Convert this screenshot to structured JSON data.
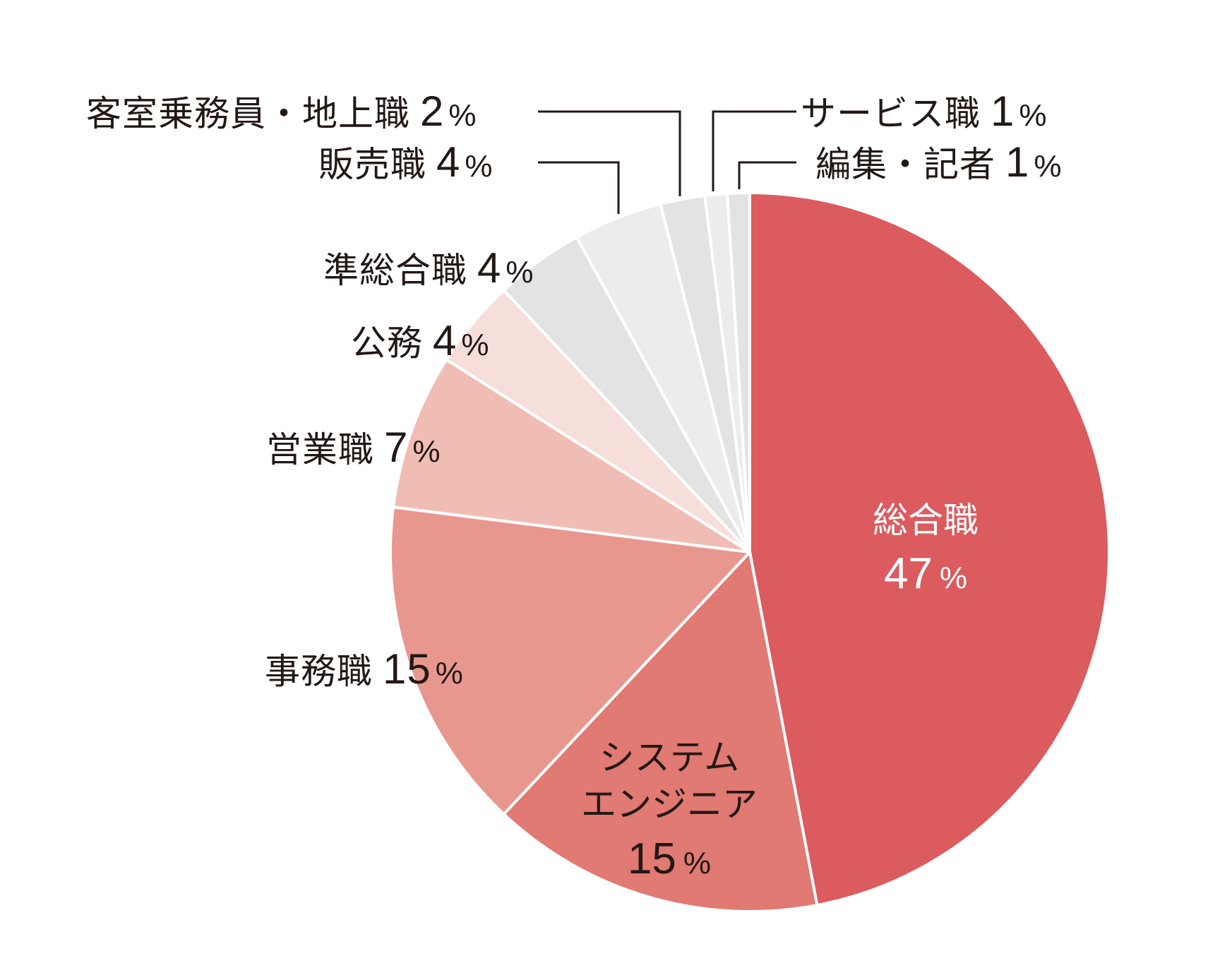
{
  "chart_data": {
    "type": "pie",
    "title": "",
    "start_angle_deg": 0,
    "direction": "clockwise",
    "unit": "%",
    "slices": [
      {
        "label": "総合職",
        "value": 47,
        "color": "#db5b5e",
        "label_color": "#ffffff",
        "label_position": "inside"
      },
      {
        "label": "システムエンジニア",
        "value": 15,
        "color": "#e07a72",
        "label_color": "#231815",
        "label_position": "inside"
      },
      {
        "label": "事務職",
        "value": 15,
        "color": "#e8978f",
        "label_color": "#231815",
        "label_position": "outside-left"
      },
      {
        "label": "営業職",
        "value": 7,
        "color": "#f0bdb5",
        "label_color": "#231815",
        "label_position": "outside-left"
      },
      {
        "label": "公務",
        "value": 4,
        "color": "#f6dfdb",
        "label_color": "#231815",
        "label_position": "outside-left"
      },
      {
        "label": "準総合職",
        "value": 4,
        "color": "#e3e3e3",
        "label_color": "#231815",
        "label_position": "outside-left"
      },
      {
        "label": "販売職",
        "value": 4,
        "color": "#ececec",
        "label_color": "#231815",
        "label_position": "leader-top-left"
      },
      {
        "label": "客室乗務員・地上職",
        "value": 2,
        "color": "#e3e3e3",
        "label_color": "#231815",
        "label_position": "leader-top-left"
      },
      {
        "label": "サービス職",
        "value": 1,
        "color": "#ececec",
        "label_color": "#231815",
        "label_position": "leader-top-right"
      },
      {
        "label": "編集・記者",
        "value": 1,
        "color": "#e3e3e3",
        "label_color": "#231815",
        "label_position": "leader-top-right"
      }
    ],
    "categories": [
      "総合職",
      "システムエンジニア",
      "事務職",
      "営業職",
      "公務",
      "準総合職",
      "販売職",
      "客室乗務員・地上職",
      "サービス職",
      "編集・記者"
    ],
    "values": [
      47,
      15,
      15,
      7,
      4,
      4,
      4,
      2,
      1,
      1
    ],
    "legend": "none (direct labels)"
  },
  "labels": {
    "sogo": {
      "name": "総合職",
      "value": "47",
      "pct": "%"
    },
    "se": {
      "name1": "システム",
      "name2": "エンジニア",
      "value": "15",
      "pct": "%"
    },
    "jimu": {
      "name": "事務職",
      "value": "15",
      "pct": "%"
    },
    "eigyo": {
      "name": "営業職",
      "value": "7",
      "pct": "%"
    },
    "komu": {
      "name": "公務",
      "value": "4",
      "pct": "%"
    },
    "junsogo": {
      "name": "準総合職",
      "value": "4",
      "pct": "%"
    },
    "hanbai": {
      "name": "販売職",
      "value": "4",
      "pct": "%"
    },
    "kyakushitsu": {
      "name": "客室乗務員・地上職",
      "value": "2",
      "pct": "%"
    },
    "service": {
      "name": "サービス職",
      "value": "1",
      "pct": "%"
    },
    "henshu": {
      "name": "編集・記者",
      "value": "1",
      "pct": "%"
    }
  },
  "colors": {
    "text": "#231815",
    "leader": "#231815",
    "separator": "#ffffff"
  }
}
